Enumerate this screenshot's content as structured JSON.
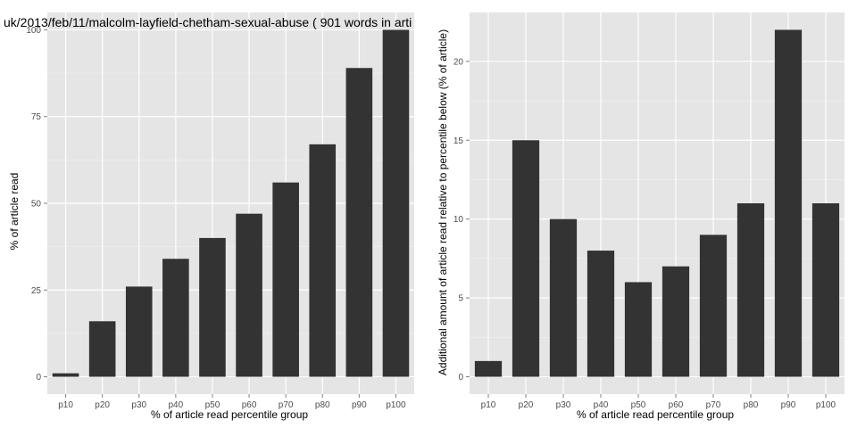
{
  "chart_data": [
    {
      "type": "bar",
      "title": "uk/2013/feb/11/malcolm-layfield-chetham-sexual-abuse ( 901 words in arti",
      "xlabel": "% of article read percentile group",
      "ylabel": "% of article read",
      "categories": [
        "p10",
        "p20",
        "p30",
        "p40",
        "p50",
        "p60",
        "p70",
        "p80",
        "p90",
        "p100"
      ],
      "values": [
        1,
        16,
        26,
        34,
        40,
        47,
        56,
        67,
        89,
        100
      ],
      "ylim": [
        -5,
        105
      ],
      "yticks": [
        0,
        25,
        50,
        75,
        100
      ],
      "grid": true,
      "colors": {
        "bar": "#333333",
        "panel": "#e5e5e5",
        "grid": "#ffffff"
      }
    },
    {
      "type": "bar",
      "title": "",
      "xlabel": "% of article read percentile group",
      "ylabel": "Additional amount of article read relative to percentile below (% of article)",
      "categories": [
        "p10",
        "p20",
        "p30",
        "p40",
        "p50",
        "p60",
        "p70",
        "p80",
        "p90",
        "p100"
      ],
      "values": [
        1,
        15,
        10,
        8,
        6,
        7,
        9,
        11,
        22,
        11
      ],
      "ylim": [
        -1.1,
        23.1
      ],
      "yticks": [
        0,
        5,
        10,
        15,
        20
      ],
      "grid": true,
      "colors": {
        "bar": "#333333",
        "panel": "#e5e5e5",
        "grid": "#ffffff"
      }
    }
  ]
}
